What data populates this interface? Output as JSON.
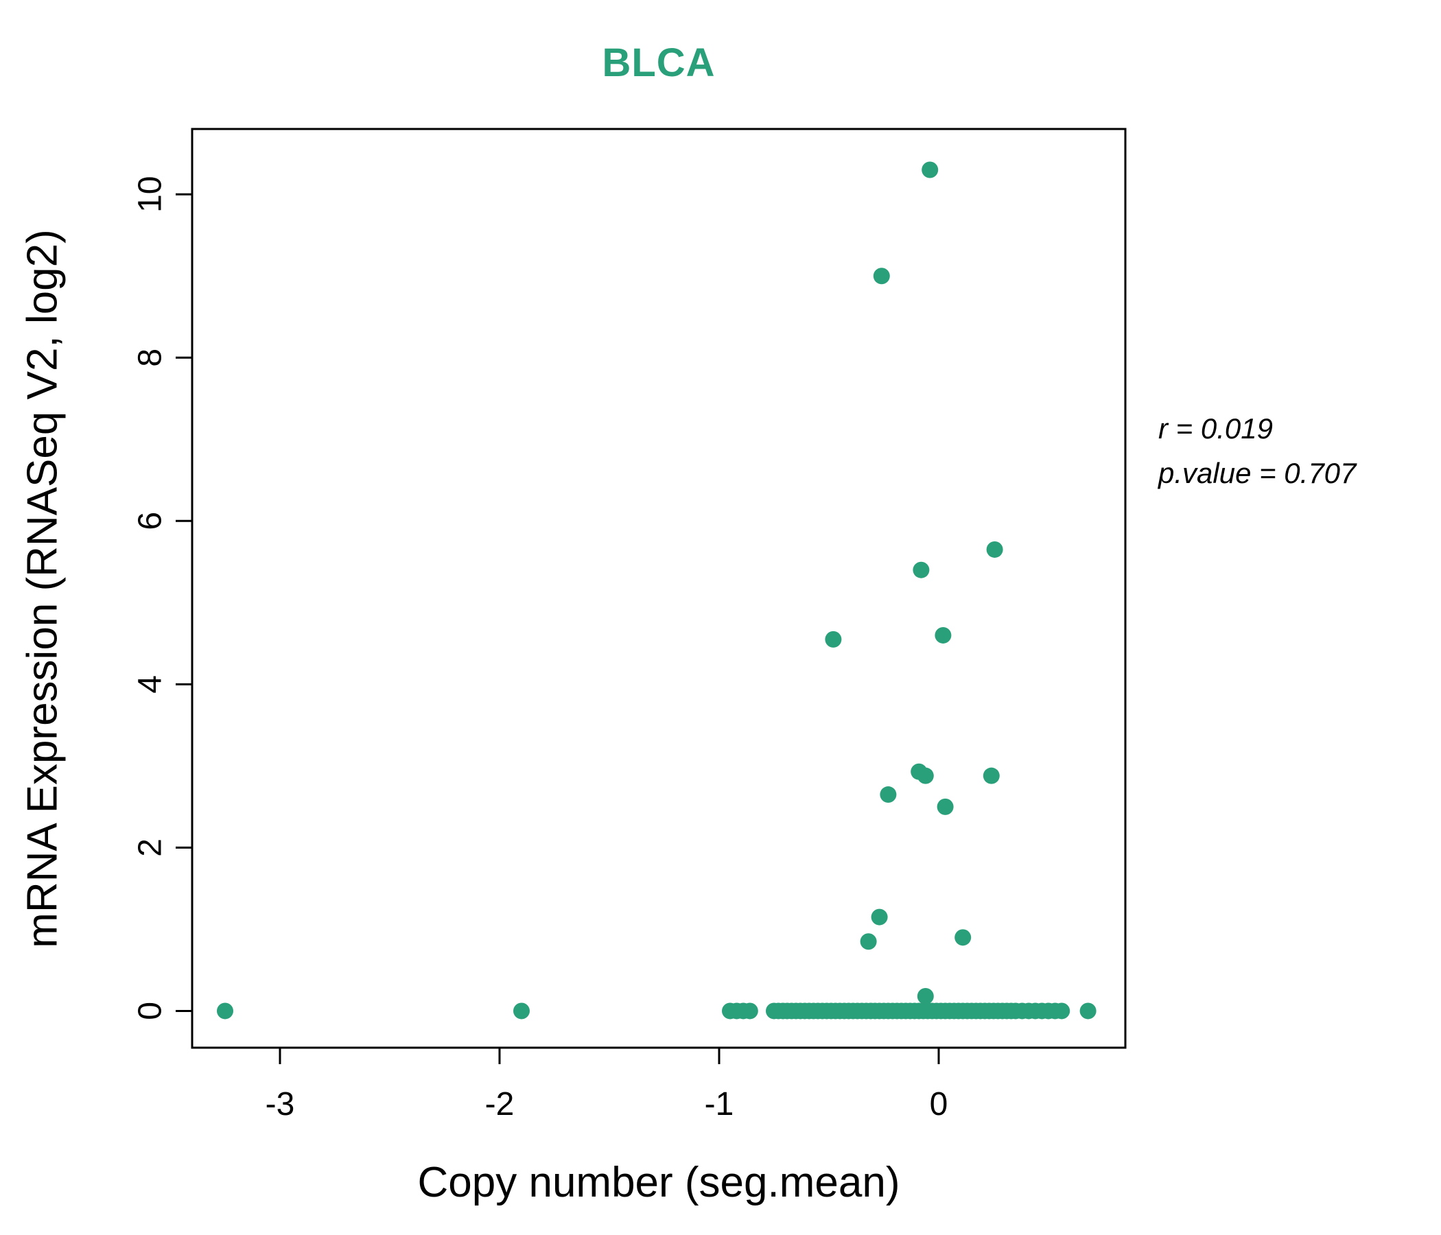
{
  "title": "BLCA",
  "annotation": {
    "r_line": "r = 0.019",
    "p_line": "p.value = 0.707"
  },
  "chart_data": {
    "type": "scatter",
    "title": "BLCA",
    "xlabel": "Copy number (seg.mean)",
    "ylabel": "mRNA Expression (RNASeq V2, log2)",
    "xlim": [
      -3.4,
      0.85
    ],
    "ylim": [
      -0.45,
      10.8
    ],
    "xticks": [
      -3,
      -2,
      -1,
      0
    ],
    "yticks": [
      0,
      2,
      4,
      6,
      8,
      10
    ],
    "grid": false,
    "legend": "none",
    "point_color": "#2aa07a",
    "title_color": "#2aa07a",
    "stats": {
      "r": 0.019,
      "p_value": 0.707
    },
    "points": [
      [
        -3.25,
        0
      ],
      [
        -1.9,
        0
      ],
      [
        -0.95,
        0
      ],
      [
        -0.92,
        0
      ],
      [
        -0.89,
        0
      ],
      [
        -0.86,
        0
      ],
      [
        -0.75,
        0
      ],
      [
        -0.73,
        0
      ],
      [
        -0.71,
        0
      ],
      [
        -0.69,
        0
      ],
      [
        -0.67,
        0
      ],
      [
        -0.65,
        0
      ],
      [
        -0.63,
        0
      ],
      [
        -0.61,
        0
      ],
      [
        -0.59,
        0
      ],
      [
        -0.57,
        0
      ],
      [
        -0.55,
        0
      ],
      [
        -0.53,
        0
      ],
      [
        -0.51,
        0
      ],
      [
        -0.49,
        0
      ],
      [
        -0.47,
        0
      ],
      [
        -0.45,
        0
      ],
      [
        -0.43,
        0
      ],
      [
        -0.41,
        0
      ],
      [
        -0.39,
        0
      ],
      [
        -0.37,
        0
      ],
      [
        -0.35,
        0
      ],
      [
        -0.33,
        0
      ],
      [
        -0.31,
        0
      ],
      [
        -0.29,
        0
      ],
      [
        -0.27,
        0
      ],
      [
        -0.25,
        0
      ],
      [
        -0.23,
        0
      ],
      [
        -0.21,
        0
      ],
      [
        -0.19,
        0
      ],
      [
        -0.17,
        0
      ],
      [
        -0.15,
        0
      ],
      [
        -0.13,
        0
      ],
      [
        -0.11,
        0
      ],
      [
        -0.09,
        0
      ],
      [
        -0.07,
        0
      ],
      [
        -0.05,
        0
      ],
      [
        -0.03,
        0
      ],
      [
        -0.01,
        0
      ],
      [
        0.01,
        0
      ],
      [
        0.03,
        0
      ],
      [
        0.05,
        0
      ],
      [
        0.07,
        0
      ],
      [
        0.09,
        0
      ],
      [
        0.11,
        0
      ],
      [
        0.13,
        0
      ],
      [
        0.15,
        0
      ],
      [
        0.17,
        0
      ],
      [
        0.19,
        0
      ],
      [
        0.21,
        0
      ],
      [
        0.23,
        0
      ],
      [
        0.25,
        0
      ],
      [
        0.27,
        0
      ],
      [
        0.29,
        0
      ],
      [
        0.31,
        0
      ],
      [
        0.33,
        0
      ],
      [
        0.35,
        0
      ],
      [
        0.38,
        0
      ],
      [
        0.41,
        0
      ],
      [
        0.44,
        0
      ],
      [
        0.47,
        0
      ],
      [
        0.5,
        0
      ],
      [
        0.53,
        0
      ],
      [
        0.56,
        0
      ],
      [
        0.68,
        0
      ],
      [
        -0.06,
        0.18
      ],
      [
        -0.32,
        0.85
      ],
      [
        0.11,
        0.9
      ],
      [
        -0.27,
        1.15
      ],
      [
        0.03,
        2.5
      ],
      [
        -0.23,
        2.65
      ],
      [
        -0.09,
        2.93
      ],
      [
        -0.06,
        2.88
      ],
      [
        0.24,
        2.88
      ],
      [
        -0.48,
        4.55
      ],
      [
        0.02,
        4.6
      ],
      [
        -0.08,
        5.4
      ],
      [
        0.255,
        5.65
      ],
      [
        -0.26,
        9.0
      ],
      [
        -0.04,
        10.3
      ]
    ]
  }
}
